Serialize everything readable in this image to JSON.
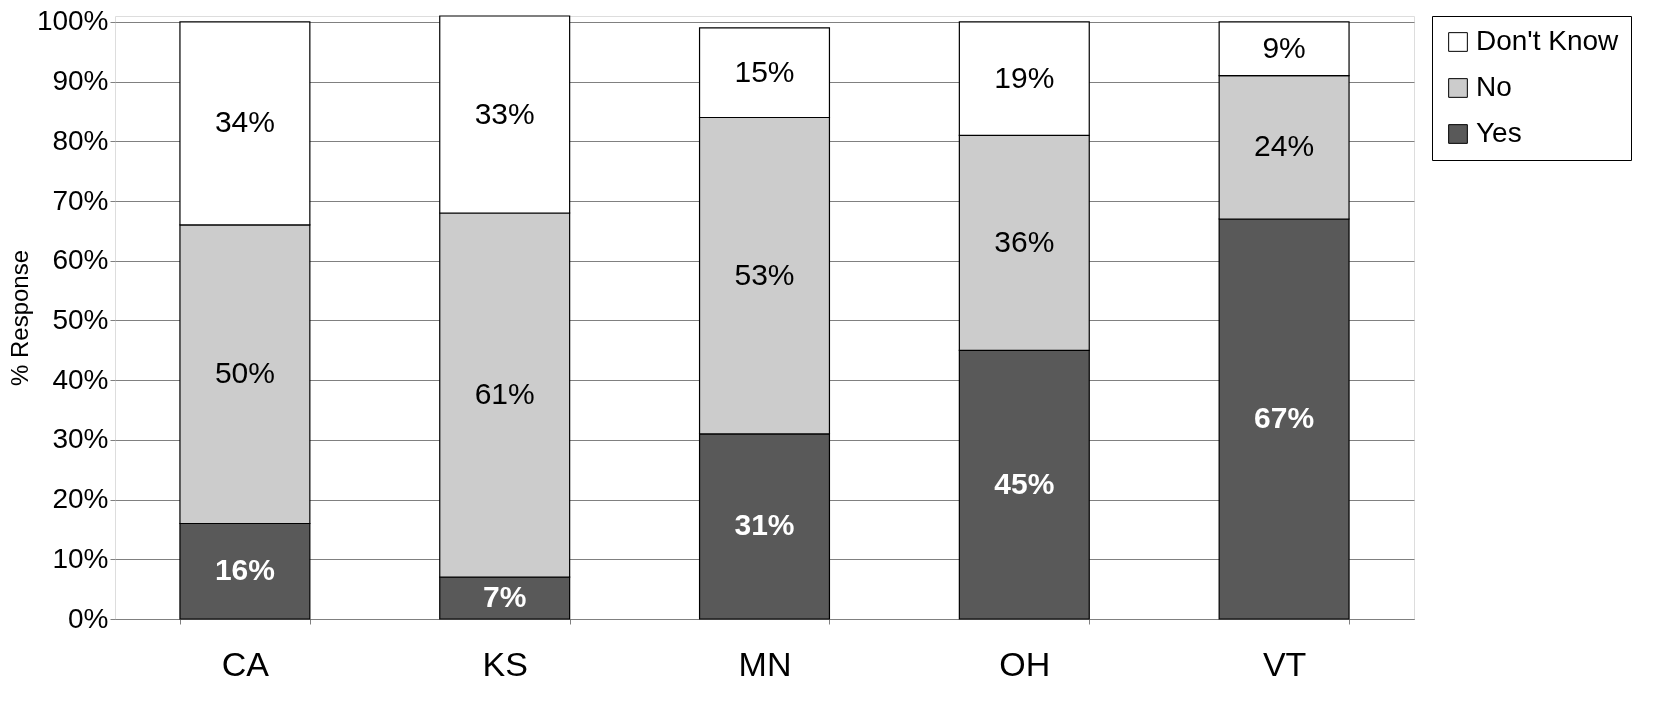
{
  "chart_data": {
    "type": "bar",
    "stacked": true,
    "ylabel": "% Response",
    "categories": [
      "CA",
      "KS",
      "MN",
      "OH",
      "VT"
    ],
    "series": [
      {
        "name": "Yes",
        "color": "#595959",
        "values": [
          16,
          7,
          31,
          45,
          67
        ]
      },
      {
        "name": "No",
        "color": "#cccccc",
        "values": [
          50,
          61,
          53,
          36,
          24
        ]
      },
      {
        "name": "Don't Know",
        "color": "#ffffff",
        "values": [
          34,
          33,
          15,
          19,
          9
        ]
      }
    ],
    "ylim": [
      0,
      101
    ],
    "yticks": [
      {
        "value": 0,
        "label": "0%"
      },
      {
        "value": 10,
        "label": "10%"
      },
      {
        "value": 20,
        "label": "20%"
      },
      {
        "value": 30,
        "label": "30%"
      },
      {
        "value": 40,
        "label": "40%"
      },
      {
        "value": 50,
        "label": "50%"
      },
      {
        "value": 60,
        "label": "60%"
      },
      {
        "value": 70,
        "label": "70%"
      },
      {
        "value": 80,
        "label": "80%"
      },
      {
        "value": 90,
        "label": "90%"
      },
      {
        "value": 100,
        "label": "100%"
      }
    ],
    "value_labels": [
      [
        "16%",
        "7%",
        "31%",
        "45%",
        "67%"
      ],
      [
        "50%",
        "61%",
        "53%",
        "36%",
        "24%"
      ],
      [
        "34%",
        "33%",
        "15%",
        "19%",
        "9%"
      ]
    ],
    "grid": "y",
    "legend": "right"
  }
}
